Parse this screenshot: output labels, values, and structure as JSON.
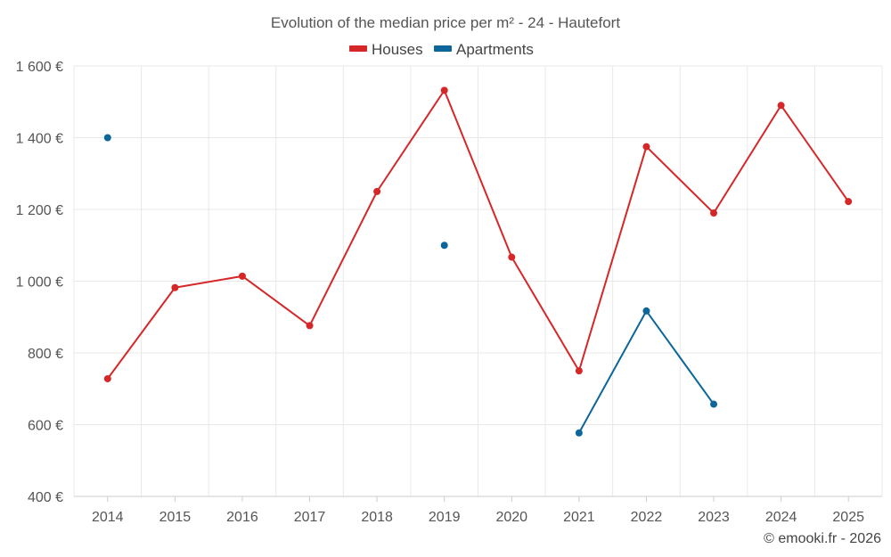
{
  "chart_data": {
    "type": "line",
    "title": "Evolution of the median price per m² - 24 - Hautefort",
    "categories": [
      "2014",
      "2015",
      "2016",
      "2017",
      "2018",
      "2019",
      "2020",
      "2021",
      "2022",
      "2023",
      "2024",
      "2025"
    ],
    "ylim": [
      400,
      1600
    ],
    "yticks": [
      400,
      600,
      800,
      1000,
      1200,
      1400,
      1600
    ],
    "ytick_labels": [
      "400 €",
      "600 €",
      "800 €",
      "1 000 €",
      "1 200 €",
      "1 400 €",
      "1 600 €"
    ],
    "grid": true,
    "legend_position": "top-center",
    "series": [
      {
        "name": "Houses",
        "color": "#d62728",
        "values": [
          728,
          982,
          1014,
          876,
          1250,
          1532,
          1067,
          750,
          1375,
          1190,
          1490,
          1222
        ]
      },
      {
        "name": "Apartments",
        "color": "#0c6699",
        "values": [
          1400,
          null,
          null,
          null,
          null,
          1100,
          null,
          577,
          917,
          657,
          null,
          null
        ]
      }
    ]
  },
  "credit": "© emooki.fr - 2026"
}
